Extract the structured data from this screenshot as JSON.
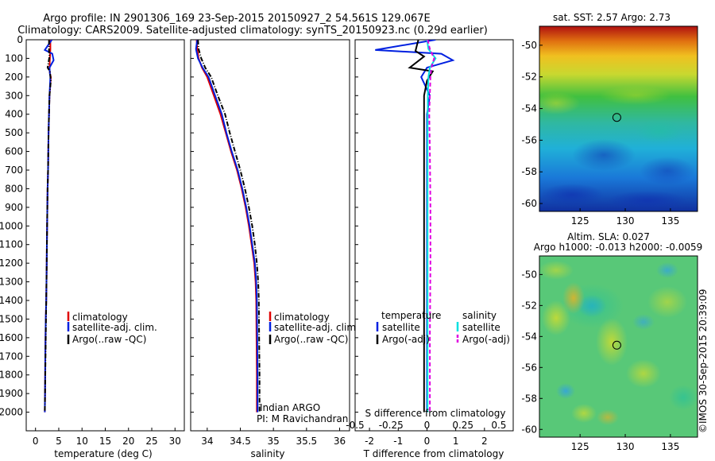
{
  "title": {
    "line1": "Argo profile: IN 2901306_169 23-Sep-2015 20150927_2 54.561S 129.067E",
    "line2": "Climatology: CARS2009. Satellite-adjusted climatology: synTS_20150923.nc (0.29d earlier)"
  },
  "side_label": "©IMOS 30-Sep-2015 20:39:09",
  "colors": {
    "climatology": "#e00000",
    "satellite": "#0020e0",
    "argo": "#000000",
    "salinity_satellite": "#00e0e0",
    "salinity_argo": "#e000e0",
    "marker": "#000000"
  },
  "chart_data": [
    {
      "type": "line",
      "panel": "temperature",
      "xlabel": "temperature (deg C)",
      "ylabel": "",
      "xlim": [
        -2,
        32
      ],
      "ylim": [
        2100,
        0
      ],
      "xticks": [
        0,
        5,
        10,
        15,
        20,
        25,
        30
      ],
      "yticks": [
        0,
        100,
        200,
        300,
        400,
        500,
        600,
        700,
        800,
        900,
        1000,
        1100,
        1200,
        1300,
        1400,
        1500,
        1600,
        1700,
        1800,
        1900,
        2000
      ],
      "legend": [
        "climatology",
        "satellite-adj. clim.",
        "Argo(..raw -QC)"
      ],
      "legend_position": "bottom-center",
      "series": [
        {
          "name": "climatology",
          "style": "solid",
          "x": [
            3.2,
            3.2,
            3.1,
            3.0,
            3.1,
            3.3,
            3.0,
            2.9,
            2.8,
            2.7,
            2.6,
            2.5,
            2.45,
            2.4,
            2.3,
            2.2,
            2.1,
            2.05,
            2.0
          ],
          "y": [
            0,
            50,
            100,
            150,
            180,
            200,
            300,
            400,
            500,
            700,
            800,
            1000,
            1100,
            1200,
            1400,
            1500,
            1700,
            1900,
            2000
          ]
        },
        {
          "name": "satellite-adj. clim.",
          "style": "solid",
          "x": [
            3.5,
            2.0,
            3.6,
            3.9,
            3.0,
            3.1,
            3.2,
            3.0,
            2.9,
            2.8,
            2.7,
            2.6,
            2.5,
            2.45,
            2.4,
            2.3,
            2.2,
            2.1,
            2.05,
            2.0
          ],
          "y": [
            0,
            55,
            75,
            110,
            150,
            180,
            200,
            300,
            400,
            500,
            700,
            800,
            1000,
            1100,
            1200,
            1400,
            1500,
            1700,
            1900,
            2000
          ]
        },
        {
          "name": "Argo(..raw -QC)",
          "style": "dashdot",
          "x": [
            2.9,
            2.9,
            3.0,
            2.6,
            3.1,
            3.3,
            3.0,
            2.9,
            2.8,
            2.7,
            2.6,
            2.5,
            2.4,
            2.3,
            2.2,
            2.1,
            2.0
          ],
          "y": [
            0,
            60,
            90,
            150,
            170,
            220,
            300,
            400,
            500,
            700,
            800,
            1000,
            1200,
            1400,
            1600,
            1800,
            2000
          ]
        }
      ]
    },
    {
      "type": "line",
      "panel": "salinity",
      "xlabel": "salinity",
      "ylabel": "",
      "xlim": [
        33.75,
        36.15
      ],
      "ylim": [
        2100,
        0
      ],
      "xticks": [
        34,
        34.5,
        35,
        35.5,
        36
      ],
      "xticklabels": [
        "34",
        "34.5",
        "35",
        "35.5",
        "36"
      ],
      "legend": [
        "climatology",
        "satellite-adj. clim.",
        "Argo(..raw -QC)"
      ],
      "legend_position": "bottom-center",
      "annotations": [
        "Indian ARGO",
        "PI: M Ravichandran"
      ],
      "series": [
        {
          "name": "climatology",
          "style": "solid",
          "x": [
            33.84,
            33.85,
            33.87,
            33.92,
            34.0,
            34.1,
            34.2,
            34.28,
            34.36,
            34.45,
            34.52,
            34.58,
            34.63,
            34.67,
            34.71,
            34.73,
            34.74,
            34.745,
            34.75,
            34.75
          ],
          "y": [
            0,
            50,
            100,
            150,
            200,
            300,
            400,
            500,
            600,
            700,
            800,
            900,
            1000,
            1100,
            1200,
            1300,
            1400,
            1600,
            1800,
            2000
          ]
        },
        {
          "name": "satellite-adj. clim.",
          "style": "solid",
          "x": [
            33.85,
            33.83,
            33.86,
            33.93,
            34.02,
            34.12,
            34.22,
            34.29,
            34.37,
            34.46,
            34.53,
            34.59,
            34.64,
            34.68,
            34.72,
            34.74,
            34.75,
            34.755,
            34.76,
            34.76
          ],
          "y": [
            0,
            50,
            100,
            150,
            200,
            300,
            400,
            500,
            600,
            700,
            800,
            900,
            1000,
            1100,
            1200,
            1300,
            1400,
            1600,
            1800,
            2000
          ]
        },
        {
          "name": "Argo(..raw -QC)",
          "style": "dashdot",
          "x": [
            33.86,
            33.87,
            33.91,
            33.97,
            34.06,
            34.16,
            34.27,
            34.34,
            34.42,
            34.5,
            34.57,
            34.63,
            34.68,
            34.72,
            34.75,
            34.77,
            34.78,
            34.785,
            34.79,
            34.79
          ],
          "y": [
            0,
            50,
            100,
            150,
            200,
            300,
            400,
            500,
            600,
            700,
            800,
            900,
            1000,
            1100,
            1200,
            1300,
            1400,
            1600,
            1800,
            2000
          ]
        }
      ]
    },
    {
      "type": "line",
      "panel": "difference",
      "xlabel": "T difference from climatology",
      "top_xlabel": "S difference from climatology",
      "xlim": [
        -2.5,
        3.0
      ],
      "ylim": [
        2100,
        0
      ],
      "xticks": [
        -2,
        -1,
        0,
        1,
        2
      ],
      "top_xticks": [
        -0.5,
        -0.25,
        0,
        0.25,
        0.5
      ],
      "top_xticklabels": [
        "-0.5",
        "-0.25",
        "0",
        "0.25",
        "0.5"
      ],
      "legend_headers": [
        "temperature",
        "salinity"
      ],
      "legend": [
        "satellite",
        "Argo(-adj)",
        "satellite",
        "Argo(-adj)"
      ],
      "legend_position": "bottom-center",
      "series": [
        {
          "name": "satellite",
          "group": "temperature",
          "style": "solid",
          "x": [
            0.3,
            -1.8,
            0.5,
            0.9,
            0.0,
            -0.2,
            0.1,
            0.0,
            0.0,
            0.0,
            0.0,
            0.0,
            0.0
          ],
          "y": [
            0,
            55,
            75,
            110,
            150,
            200,
            300,
            400,
            600,
            800,
            1200,
            1600,
            2000
          ]
        },
        {
          "name": "Argo(-adj)",
          "group": "temperature",
          "style": "solid",
          "x": [
            -0.3,
            -0.4,
            -0.1,
            -0.6,
            0.2,
            0.0,
            -0.1,
            -0.1,
            -0.1,
            -0.1,
            -0.1,
            -0.1,
            -0.1
          ],
          "y": [
            0,
            60,
            90,
            150,
            170,
            220,
            300,
            400,
            600,
            800,
            1200,
            1600,
            2000
          ]
        },
        {
          "name": "satellite",
          "group": "salinity",
          "style": "solid",
          "x": [
            0.0,
            0.05,
            0.3,
            0.1,
            0.05,
            0.03,
            0.02,
            0.02,
            0.02,
            0.02,
            0.02
          ],
          "y": [
            0,
            50,
            100,
            150,
            200,
            300,
            500,
            800,
            1200,
            1600,
            2000
          ]
        },
        {
          "name": "Argo(-adj)",
          "group": "salinity",
          "style": "dashed",
          "x": [
            0.02,
            0.1,
            0.25,
            0.15,
            0.12,
            0.08,
            0.1,
            0.12,
            0.12,
            0.1,
            0.1
          ],
          "y": [
            0,
            50,
            100,
            150,
            200,
            400,
            600,
            900,
            1200,
            1600,
            2000
          ]
        }
      ]
    },
    {
      "type": "heatmap",
      "panel": "sst_map",
      "title": "sat. SST: 2.57 Argo: 2.73",
      "xlim": [
        120.5,
        138
      ],
      "ylim": [
        -60.5,
        -48.8
      ],
      "xticks": [
        125,
        130,
        135
      ],
      "yticks": [
        -50,
        -52,
        -54,
        -56,
        -58,
        -60
      ],
      "marker": {
        "lon": 129.067,
        "lat": -54.561
      }
    },
    {
      "type": "heatmap",
      "panel": "sla_map",
      "title": "Altim. SLA: 0.027",
      "subtitle": "Argo h1000: -0.013 h2000: -0.0059",
      "xlim": [
        120.5,
        138
      ],
      "ylim": [
        -60.5,
        -48.8
      ],
      "xticks": [
        125,
        130,
        135
      ],
      "yticks": [
        -50,
        -52,
        -54,
        -56,
        -58,
        -60
      ],
      "marker": {
        "lon": 129.067,
        "lat": -54.561
      }
    }
  ]
}
